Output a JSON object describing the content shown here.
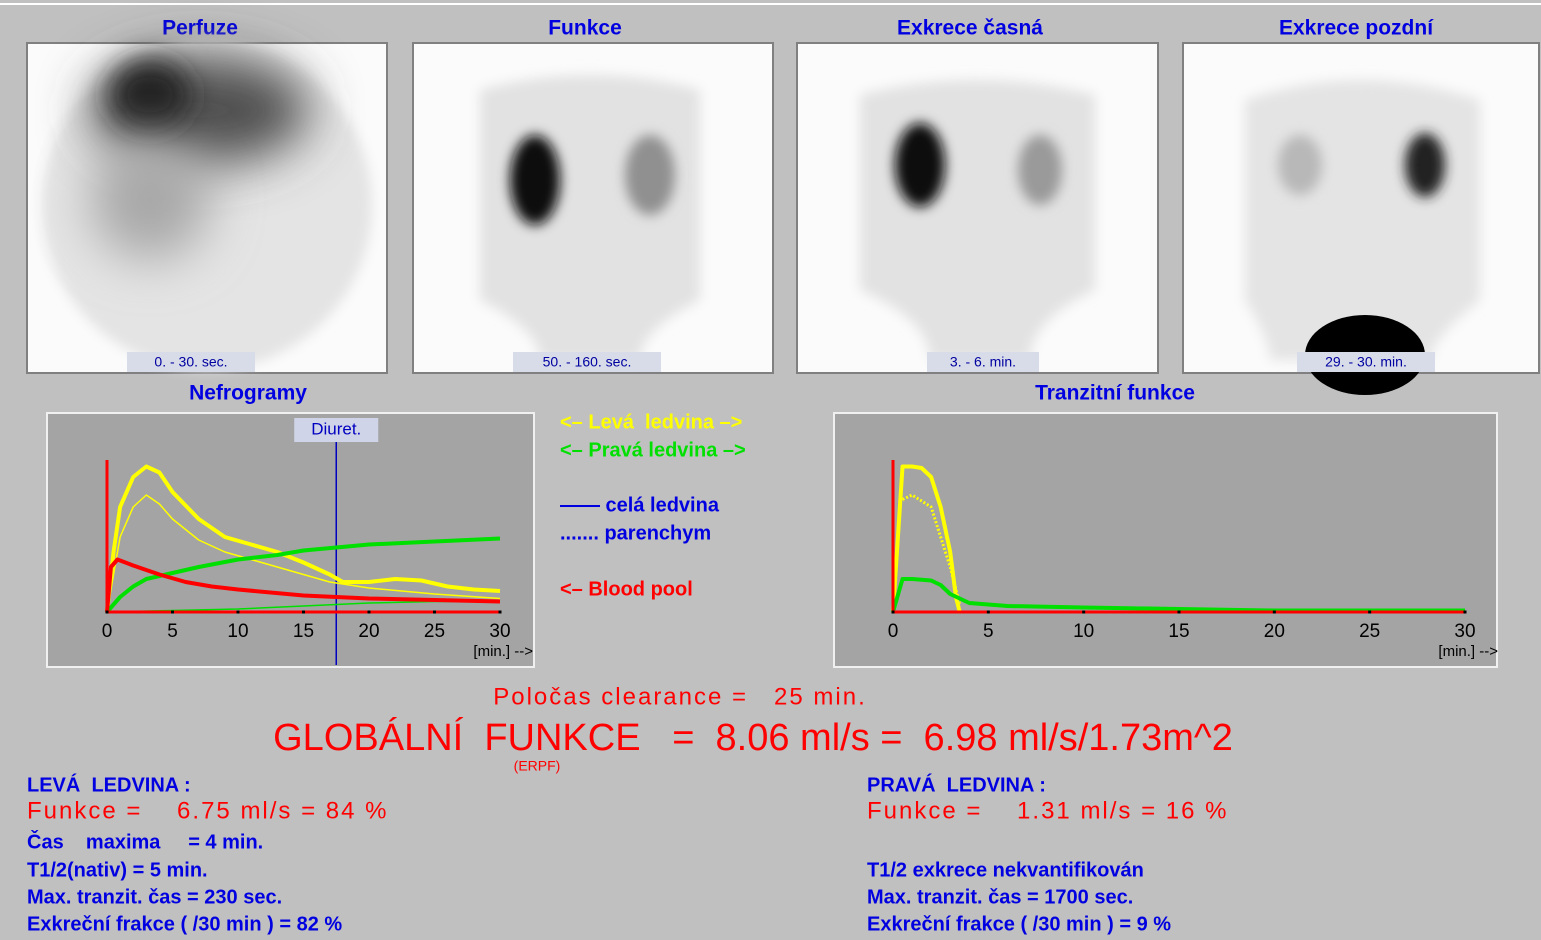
{
  "images": [
    {
      "title": "Perfuze",
      "time": "0. - 30. sec."
    },
    {
      "title": "Funkce",
      "time": "50. - 160. sec."
    },
    {
      "title": "Exkrece časná",
      "time": "3. - 6. min."
    },
    {
      "title": "Exkrece pozdní",
      "time": "29. - 30. min."
    }
  ],
  "chart_data": [
    {
      "type": "line",
      "title": "Nefrogramy",
      "xlabel": "[min.] -->",
      "xlim": [
        0,
        30
      ],
      "xticks": [
        0,
        5,
        10,
        15,
        20,
        25,
        30
      ],
      "ylim": [
        0,
        100
      ],
      "annotations": [
        {
          "text": "Diuret.",
          "x": 17.5
        }
      ],
      "series": [
        {
          "color": "#ffff00",
          "style": "solid",
          "x": [
            0,
            0.5,
            1,
            2,
            3,
            4,
            5,
            7,
            9,
            11,
            13,
            15,
            17,
            18,
            20,
            22,
            24,
            26,
            28,
            30
          ],
          "values": [
            0,
            40,
            70,
            90,
            97,
            93,
            80,
            62,
            50,
            45,
            40,
            33,
            25,
            20,
            20,
            22,
            21,
            17,
            15,
            14
          ]
        },
        {
          "color": "#ffff00",
          "style": "thin",
          "x": [
            0,
            1,
            2,
            3,
            4,
            5,
            7,
            9,
            11,
            13,
            15,
            17,
            20,
            25,
            30
          ],
          "values": [
            0,
            50,
            70,
            78,
            72,
            62,
            48,
            40,
            35,
            30,
            25,
            20,
            16,
            12,
            9
          ]
        },
        {
          "color": "#00e000",
          "style": "solid",
          "x": [
            0,
            1,
            2,
            3,
            5,
            7,
            10,
            13,
            15,
            20,
            25,
            30
          ],
          "values": [
            0,
            10,
            17,
            22,
            26,
            30,
            35,
            38,
            41,
            45,
            47,
            49
          ]
        },
        {
          "color": "#00e000",
          "style": "thin",
          "x": [
            0,
            5,
            10,
            15,
            20,
            25,
            30
          ],
          "values": [
            0,
            1,
            2,
            4,
            6,
            7,
            7
          ]
        },
        {
          "color": "#ff0000",
          "style": "solid",
          "x": [
            0,
            0.3,
            0.8,
            2,
            4,
            6,
            8,
            10,
            15,
            20,
            25,
            30
          ],
          "values": [
            0,
            30,
            35,
            31,
            25,
            20,
            17,
            15,
            11,
            9,
            8,
            7
          ]
        }
      ]
    },
    {
      "type": "line",
      "title": "Tranzitní funkce",
      "xlabel": "[min.] -->",
      "xlim": [
        0,
        30
      ],
      "xticks": [
        0,
        5,
        10,
        15,
        20,
        25,
        30
      ],
      "ylim": [
        0,
        100
      ],
      "series": [
        {
          "color": "#ffff00",
          "style": "solid",
          "x": [
            0,
            0.5,
            1,
            1.5,
            2,
            2.5,
            3,
            3.3,
            3.5
          ],
          "values": [
            0,
            97,
            97,
            96,
            90,
            70,
            40,
            10,
            0
          ]
        },
        {
          "color": "#ffff00",
          "style": "dotted",
          "x": [
            0.5,
            1,
            2,
            3,
            3.5
          ],
          "values": [
            75,
            78,
            70,
            30,
            5
          ]
        },
        {
          "color": "#00e000",
          "style": "solid",
          "x": [
            0,
            0.5,
            1,
            2,
            2.5,
            3,
            4,
            6,
            10,
            15,
            20,
            30
          ],
          "values": [
            0,
            22,
            22,
            21,
            18,
            12,
            6,
            4,
            3,
            2,
            1,
            1
          ]
        }
      ]
    }
  ],
  "legend": {
    "left": "<– Levá  ledvina –>",
    "right": "<– Pravá ledvina –>",
    "whole": "—— celá ledvina",
    "parenchym": "....... parenchym",
    "blood": "<– Blood pool"
  },
  "summary": {
    "clearance": "Poločas clearance =   25 min.",
    "global": "GLOBÁLNÍ  FUNKCE   =  8.06 ml/s =  6.98 ml/s/1.73m^2",
    "erpf": "(ERPF)"
  },
  "left_kidney": {
    "title": "LEVÁ  LEDVINA :",
    "function": "Funkce =    6.75 ml/s = 84 %",
    "lines": [
      "Čas    maxima     = 4 min.",
      "T1/2(nativ) = 5 min.",
      "Max. tranzit. čas = 230 sec.",
      "Exkreční frakce ( /30 min ) = 82 %"
    ]
  },
  "right_kidney": {
    "title": "PRAVÁ  LEDVINA :",
    "function": "Funkce =    1.31 ml/s = 16 %",
    "lines": [
      "T1/2 exkrece nekvantifikován",
      "Max. tranzit. čas = 1700 sec.",
      "Exkreční frakce ( /30 min ) = 9 %"
    ]
  }
}
